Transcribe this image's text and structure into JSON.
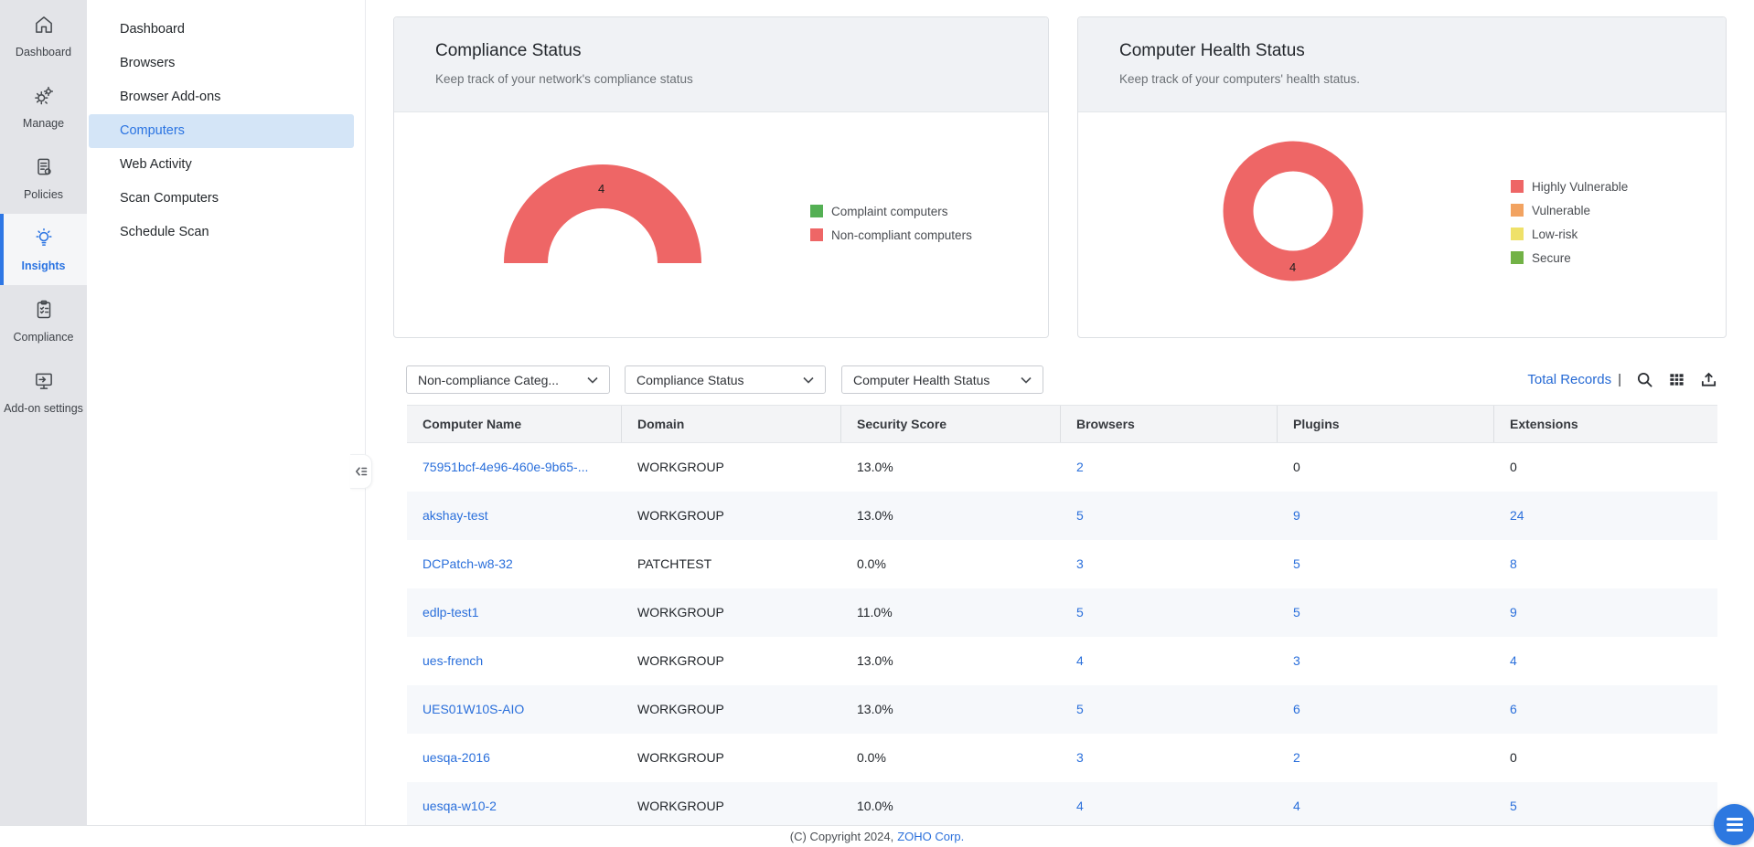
{
  "rail": {
    "items": [
      {
        "label": "Dashboard",
        "icon": "home-icon"
      },
      {
        "label": "Manage",
        "icon": "gears-icon"
      },
      {
        "label": "Policies",
        "icon": "policies-icon"
      },
      {
        "label": "Insights",
        "icon": "lightbulb-icon"
      },
      {
        "label": "Compliance",
        "icon": "clipboard-icon"
      },
      {
        "label": "Add-on settings",
        "icon": "monitor-arrow-icon"
      }
    ]
  },
  "sidebar": {
    "items": [
      {
        "label": "Dashboard"
      },
      {
        "label": "Browsers"
      },
      {
        "label": "Browser Add-ons"
      },
      {
        "label": "Computers"
      },
      {
        "label": "Web Activity"
      },
      {
        "label": "Scan Computers"
      },
      {
        "label": "Schedule Scan"
      }
    ]
  },
  "cards": {
    "compliance": {
      "title": "Compliance Status",
      "subtitle": "Keep track of your network's compliance status",
      "value": "4",
      "legend": [
        {
          "label": "Complaint computers",
          "color": "#54b054"
        },
        {
          "label": "Non-compliant computers",
          "color": "#ee6666"
        }
      ]
    },
    "health": {
      "title": "Computer Health Status",
      "subtitle": "Keep track of your computers' health status.",
      "value": "4",
      "legend": [
        {
          "label": "Highly Vulnerable",
          "color": "#ee6666"
        },
        {
          "label": "Vulnerable",
          "color": "#f2a361"
        },
        {
          "label": "Low-risk",
          "color": "#efe169"
        },
        {
          "label": "Secure",
          "color": "#72b246"
        }
      ]
    }
  },
  "chart_data": [
    {
      "type": "pie",
      "subtype": "half-donut-gauge",
      "title": "Compliance Status",
      "series": [
        {
          "name": "Complaint computers",
          "value": 0
        },
        {
          "name": "Non-compliant computers",
          "value": 4
        }
      ],
      "data_label": "4",
      "legend_position": "right"
    },
    {
      "type": "pie",
      "subtype": "donut",
      "title": "Computer Health Status",
      "series": [
        {
          "name": "Highly Vulnerable",
          "value": 4
        },
        {
          "name": "Vulnerable",
          "value": 0
        },
        {
          "name": "Low-risk",
          "value": 0
        },
        {
          "name": "Secure",
          "value": 0
        }
      ],
      "data_label": "4",
      "legend_position": "right"
    }
  ],
  "filters": [
    {
      "label": "Non-compliance Categ..."
    },
    {
      "label": "Compliance Status"
    },
    {
      "label": "Computer Health Status"
    }
  ],
  "toolbar": {
    "total_records_label": "Total Records",
    "separator": "|"
  },
  "table": {
    "columns": [
      "Computer Name",
      "Domain",
      "Security Score",
      "Browsers",
      "Plugins",
      "Extensions"
    ],
    "rows": [
      [
        {
          "t": "75951bcf-4e96-460e-9b65-...",
          "link": true
        },
        {
          "t": "WORKGROUP"
        },
        {
          "t": "13.0%"
        },
        {
          "t": "2",
          "link": true
        },
        {
          "t": "0"
        },
        {
          "t": "0"
        }
      ],
      [
        {
          "t": "akshay-test",
          "link": true
        },
        {
          "t": "WORKGROUP"
        },
        {
          "t": "13.0%"
        },
        {
          "t": "5",
          "link": true
        },
        {
          "t": "9",
          "link": true
        },
        {
          "t": "24",
          "link": true
        }
      ],
      [
        {
          "t": "DCPatch-w8-32",
          "link": true
        },
        {
          "t": "PATCHTEST"
        },
        {
          "t": "0.0%"
        },
        {
          "t": "3",
          "link": true
        },
        {
          "t": "5",
          "link": true
        },
        {
          "t": "8",
          "link": true
        }
      ],
      [
        {
          "t": "edlp-test1",
          "link": true
        },
        {
          "t": "WORKGROUP"
        },
        {
          "t": "11.0%"
        },
        {
          "t": "5",
          "link": true
        },
        {
          "t": "5",
          "link": true
        },
        {
          "t": "9",
          "link": true
        }
      ],
      [
        {
          "t": "ues-french",
          "link": true
        },
        {
          "t": "WORKGROUP"
        },
        {
          "t": "13.0%"
        },
        {
          "t": "4",
          "link": true
        },
        {
          "t": "3",
          "link": true
        },
        {
          "t": "4",
          "link": true
        }
      ],
      [
        {
          "t": "UES01W10S-AIO",
          "link": true
        },
        {
          "t": "WORKGROUP"
        },
        {
          "t": "13.0%"
        },
        {
          "t": "5",
          "link": true
        },
        {
          "t": "6",
          "link": true
        },
        {
          "t": "6",
          "link": true
        }
      ],
      [
        {
          "t": "uesqa-2016",
          "link": true
        },
        {
          "t": "WORKGROUP"
        },
        {
          "t": "0.0%"
        },
        {
          "t": "3",
          "link": true
        },
        {
          "t": "2",
          "link": true
        },
        {
          "t": "0"
        }
      ],
      [
        {
          "t": "uesqa-w10-2",
          "link": true
        },
        {
          "t": "WORKGROUP"
        },
        {
          "t": "10.0%"
        },
        {
          "t": "4",
          "link": true
        },
        {
          "t": "4",
          "link": true
        },
        {
          "t": "5",
          "link": true
        }
      ]
    ]
  },
  "footer": {
    "copyright": "(C) Copyright 2024,",
    "company": "ZOHO Corp."
  }
}
